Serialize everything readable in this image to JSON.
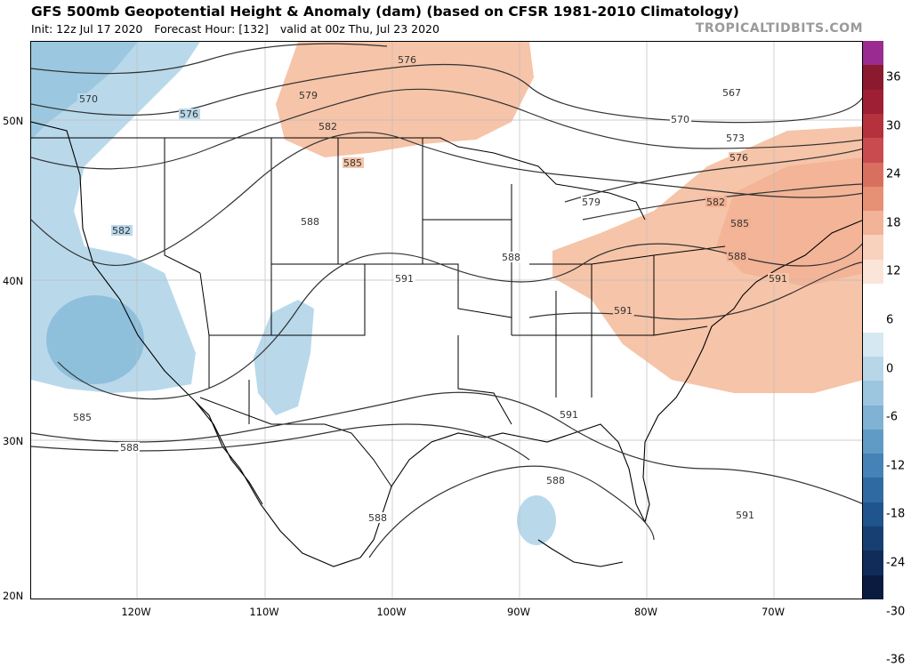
{
  "header": {
    "title": "GFS 500mb Geopotential Height & Anomaly (dam) (based on CFSR 1981-2010 Climatology)",
    "init": "Init: 12z Jul 17 2020",
    "forecast_hour": "Forecast Hour: [132]",
    "valid": "valid at 00z Thu, Jul 23 2020",
    "watermark": "TROPICALTIDBITS.COM"
  },
  "axes": {
    "latitudes": [
      "50N",
      "40N",
      "30N",
      "20N"
    ],
    "longitudes": [
      "120W",
      "110W",
      "100W",
      "90W",
      "80W",
      "70W"
    ]
  },
  "contour_labels": [
    "576",
    "579",
    "582",
    "585",
    "588",
    "591",
    "570",
    "576",
    "582",
    "588",
    "585",
    "588",
    "591",
    "588",
    "591",
    "591",
    "567",
    "570",
    "573",
    "576",
    "579",
    "582",
    "585",
    "588",
    "591",
    "588"
  ],
  "colorbar": {
    "labels": [
      "36",
      "30",
      "24",
      "18",
      "12",
      "6",
      "0",
      "-6",
      "-12",
      "-18",
      "-24",
      "-30",
      "-36"
    ],
    "colors": [
      "#9a2b8f",
      "#8b1a2e",
      "#9e1f33",
      "#b5313d",
      "#c94b4f",
      "#d9705f",
      "#e69076",
      "#f2b398",
      "#f8d2bd",
      "#fbe5d8",
      "#ffffff",
      "#ffffff",
      "#d6e8f2",
      "#b7d7e8",
      "#9cc6df",
      "#7fb2d3",
      "#609bc6",
      "#4582b5",
      "#2f6ba2",
      "#1f548c",
      "#173f72",
      "#112c58",
      "#0b1b40"
    ]
  }
}
